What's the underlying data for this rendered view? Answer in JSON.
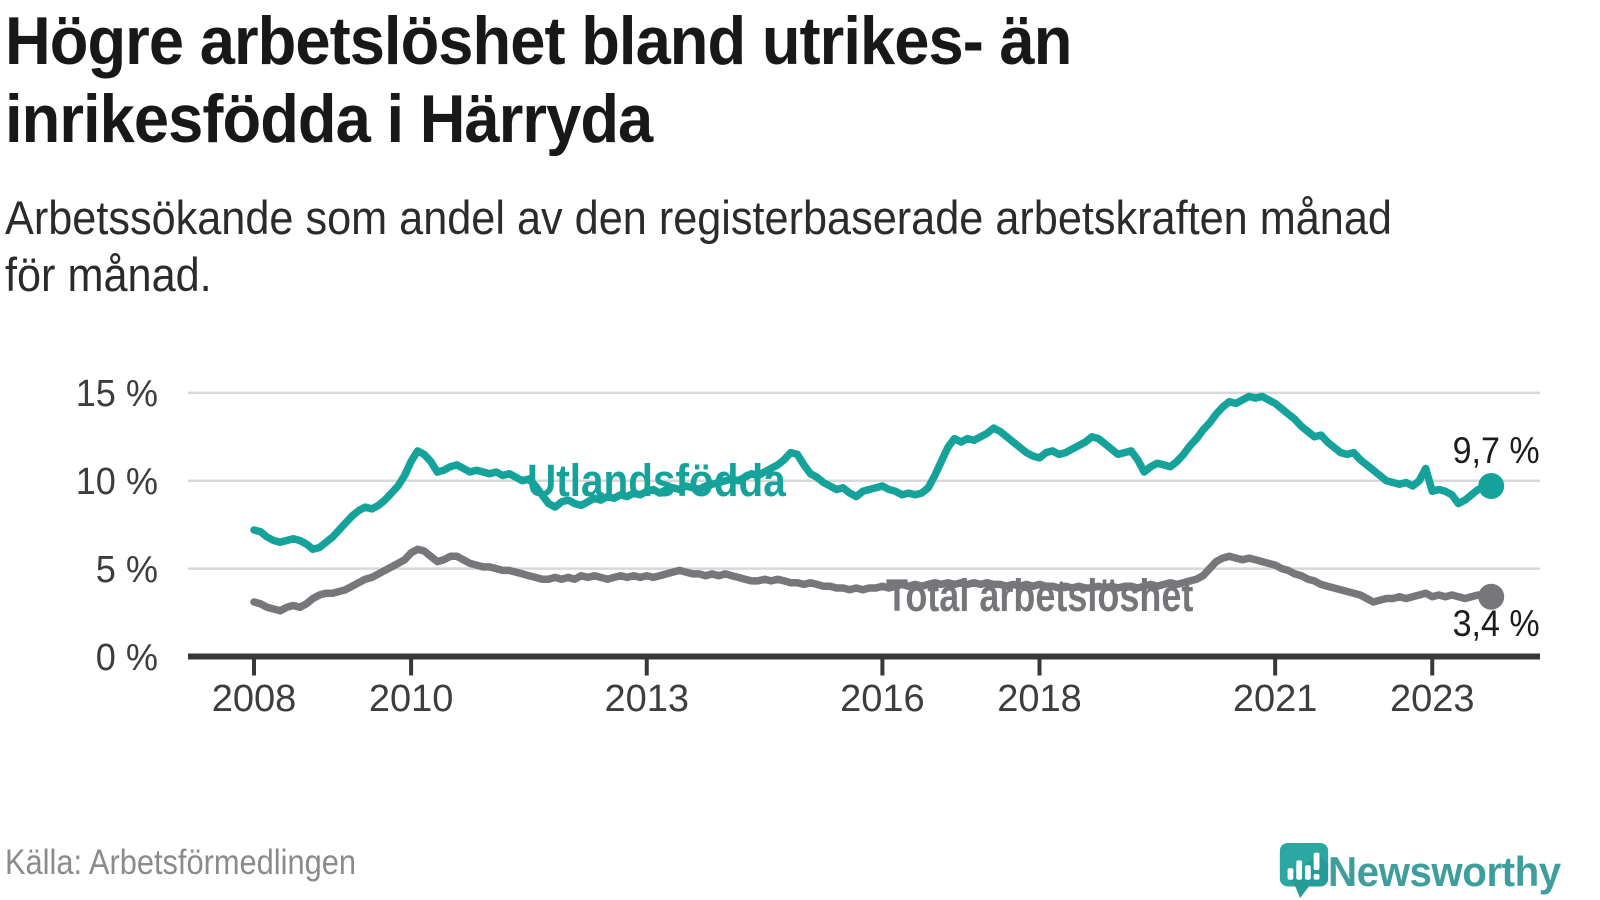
{
  "title": {
    "lines": [
      "Högre arbetslöshet bland utrikes- än",
      "inrikesfödda i Härryda"
    ]
  },
  "subtitle": {
    "lines": [
      "Arbetssökande som andel av den registerbaserade arbetskraften månad",
      "för månad."
    ]
  },
  "source": "Källa: Arbetsförmedlingen",
  "brand": {
    "name": "Newsworthy"
  },
  "colors": {
    "teal": "#14a29a",
    "gray": "#77777b",
    "grid": "#d8d8d8",
    "axis": "#383838",
    "title_text": "#181818",
    "brand_teal": "#3e9e9c"
  },
  "chart_data": {
    "type": "line",
    "title": "Högre arbetslöshet bland utrikes- än inrikesfödda i Härryda",
    "subtitle": "Arbetssökande som andel av den registerbaserade arbetskraften månad för månad.",
    "x_start_year": 2008,
    "x_step_months": 1,
    "x_range": [
      2008.0,
      2023.75
    ],
    "ylim": [
      0,
      15
    ],
    "grid": "horizontal",
    "legend_position": "inline-labels",
    "yticks": [
      "15 %",
      "10 %",
      "5 %",
      "0 %"
    ],
    "ytick_values": [
      15,
      10,
      5,
      0
    ],
    "xticks": [
      2008,
      2010,
      2013,
      2016,
      2018,
      2021,
      2023
    ],
    "series": [
      {
        "name": "Utlandsfödda",
        "color": "#14a29a",
        "end_label": "9,7 %",
        "end_value": 9.7,
        "values": [
          7.2,
          7.1,
          6.8,
          6.6,
          6.5,
          6.6,
          6.7,
          6.6,
          6.4,
          6.1,
          6.2,
          6.5,
          6.8,
          7.2,
          7.6,
          8.0,
          8.3,
          8.5,
          8.4,
          8.6,
          8.9,
          9.3,
          9.7,
          10.3,
          11.1,
          11.7,
          11.5,
          11.1,
          10.5,
          10.6,
          10.8,
          10.9,
          10.7,
          10.5,
          10.6,
          10.5,
          10.4,
          10.5,
          10.3,
          10.4,
          10.2,
          10.0,
          10.1,
          9.7,
          9.2,
          8.7,
          8.5,
          8.8,
          8.9,
          8.7,
          8.6,
          8.8,
          9.0,
          8.9,
          9.1,
          9.0,
          9.2,
          9.1,
          9.3,
          9.2,
          9.4,
          9.5,
          9.3,
          9.5,
          9.6,
          9.5,
          9.7,
          9.6,
          9.5,
          9.7,
          9.8,
          9.9,
          10.0,
          10.1,
          10.0,
          10.2,
          10.4,
          10.3,
          10.5,
          10.7,
          10.9,
          11.2,
          11.6,
          11.5,
          10.9,
          10.4,
          10.2,
          9.9,
          9.7,
          9.5,
          9.6,
          9.3,
          9.1,
          9.4,
          9.5,
          9.6,
          9.7,
          9.5,
          9.4,
          9.2,
          9.3,
          9.2,
          9.3,
          9.6,
          10.3,
          11.1,
          11.9,
          12.4,
          12.2,
          12.4,
          12.3,
          12.5,
          12.7,
          13.0,
          12.8,
          12.5,
          12.2,
          11.9,
          11.6,
          11.4,
          11.3,
          11.6,
          11.7,
          11.5,
          11.6,
          11.8,
          12.0,
          12.2,
          12.5,
          12.4,
          12.1,
          11.8,
          11.5,
          11.6,
          11.7,
          11.2,
          10.5,
          10.8,
          11.0,
          10.9,
          10.8,
          11.1,
          11.5,
          12.0,
          12.4,
          12.9,
          13.3,
          13.8,
          14.2,
          14.5,
          14.4,
          14.6,
          14.8,
          14.7,
          14.8,
          14.6,
          14.4,
          14.1,
          13.8,
          13.5,
          13.1,
          12.8,
          12.5,
          12.6,
          12.2,
          11.9,
          11.6,
          11.5,
          11.6,
          11.2,
          10.9,
          10.6,
          10.3,
          10.0,
          9.9,
          9.8,
          9.9,
          9.7,
          10.0,
          10.7,
          9.4,
          9.5,
          9.4,
          9.2,
          8.7,
          8.9,
          9.2,
          9.5,
          9.6,
          9.7
        ]
      },
      {
        "name": "Total arbetslöshet",
        "color": "#77777b",
        "end_label": "3,4 %",
        "end_value": 3.4,
        "values": [
          3.1,
          3.0,
          2.8,
          2.7,
          2.6,
          2.8,
          2.9,
          2.8,
          3.0,
          3.3,
          3.5,
          3.6,
          3.6,
          3.7,
          3.8,
          4.0,
          4.2,
          4.4,
          4.5,
          4.7,
          4.9,
          5.1,
          5.3,
          5.5,
          5.9,
          6.1,
          6.0,
          5.7,
          5.4,
          5.5,
          5.7,
          5.7,
          5.5,
          5.3,
          5.2,
          5.1,
          5.1,
          5.0,
          4.9,
          4.9,
          4.8,
          4.7,
          4.6,
          4.5,
          4.4,
          4.4,
          4.5,
          4.4,
          4.5,
          4.4,
          4.6,
          4.5,
          4.6,
          4.5,
          4.4,
          4.5,
          4.6,
          4.5,
          4.6,
          4.5,
          4.6,
          4.5,
          4.6,
          4.7,
          4.8,
          4.9,
          4.8,
          4.7,
          4.7,
          4.6,
          4.7,
          4.6,
          4.7,
          4.6,
          4.5,
          4.4,
          4.3,
          4.3,
          4.4,
          4.3,
          4.4,
          4.3,
          4.2,
          4.2,
          4.1,
          4.2,
          4.1,
          4.0,
          4.0,
          3.9,
          3.9,
          3.8,
          3.9,
          3.8,
          3.9,
          3.9,
          4.0,
          3.9,
          4.0,
          4.1,
          4.0,
          4.1,
          4.0,
          4.1,
          4.2,
          4.1,
          4.2,
          4.1,
          4.2,
          4.1,
          4.2,
          4.1,
          4.2,
          4.1,
          4.1,
          4.0,
          4.1,
          4.0,
          4.1,
          4.0,
          4.1,
          4.0,
          4.0,
          3.9,
          4.0,
          3.9,
          4.0,
          3.9,
          3.9,
          4.0,
          3.9,
          4.0,
          3.9,
          4.0,
          4.0,
          3.9,
          4.0,
          4.1,
          4.0,
          4.1,
          4.2,
          4.1,
          4.2,
          4.3,
          4.4,
          4.6,
          5.0,
          5.4,
          5.6,
          5.7,
          5.6,
          5.5,
          5.6,
          5.5,
          5.4,
          5.3,
          5.2,
          5.0,
          4.9,
          4.7,
          4.6,
          4.4,
          4.3,
          4.1,
          4.0,
          3.9,
          3.8,
          3.7,
          3.6,
          3.5,
          3.3,
          3.1,
          3.2,
          3.3,
          3.3,
          3.4,
          3.3,
          3.4,
          3.5,
          3.6,
          3.4,
          3.5,
          3.4,
          3.5,
          3.4,
          3.3,
          3.4,
          3.5,
          3.5,
          3.4
        ]
      }
    ]
  }
}
